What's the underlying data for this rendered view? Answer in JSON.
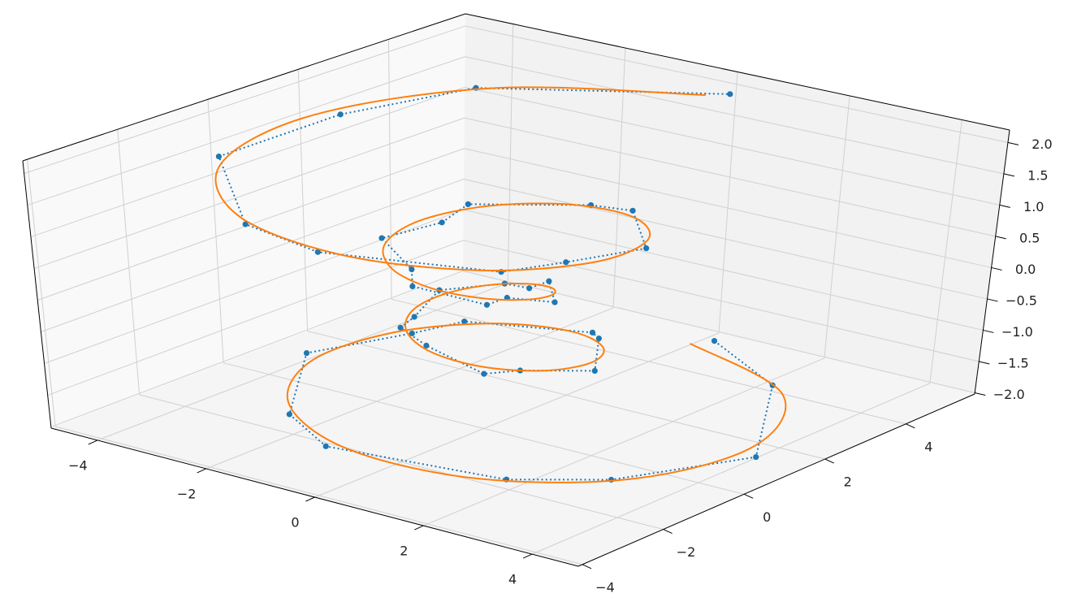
{
  "chart_data": {
    "type": "3d",
    "xlim": [
      -4.85,
      4.85
    ],
    "ylim": [
      -4.1,
      5.7
    ],
    "zlim": [
      -2.02,
      2.2
    ],
    "xticks": [
      {
        "value": -4,
        "label": "−4"
      },
      {
        "value": -2,
        "label": "−2"
      },
      0,
      2,
      4
    ],
    "yticks": [
      {
        "value": -4,
        "label": "−4"
      },
      {
        "value": -2,
        "label": "−2"
      },
      0,
      2,
      4
    ],
    "zticks": [
      {
        "value": -2,
        "label": "−2.0"
      },
      {
        "value": -1.5,
        "label": "−1.5"
      },
      {
        "value": -1,
        "label": "−1.0"
      },
      {
        "value": -0.5,
        "label": "−0.5"
      },
      {
        "value": 0,
        "label": "0.0"
      },
      {
        "value": 0.5,
        "label": "0.5"
      },
      {
        "value": 1,
        "label": "1.0"
      },
      {
        "value": 1.5,
        "label": "1.5"
      },
      {
        "value": 2,
        "label": "2.0"
      }
    ],
    "grid": true,
    "series": [
      {
        "color": "#1f77b4",
        "linestyle": "dotted",
        "marker": "o",
        "x": [
          0.3,
          2.4,
          4.3,
          3.5,
          2.4,
          -0.3,
          -1.5,
          -2.8,
          -2.1,
          -1.6,
          0.3,
          0.8,
          1.8,
          1.2,
          1.0,
          -0.2,
          -0.9,
          -0.8,
          -1.2,
          -0.4,
          0.2,
          0.4,
          1.2,
          0.8,
          0.9,
          -0.2,
          -0.6,
          -1.6,
          -1.3,
          -1.3,
          0.2,
          1.1,
          2.5,
          2.3,
          2.0,
          -0.3,
          -1.8,
          -3.9,
          -3.8,
          -2.9,
          0.2
        ],
        "y": [
          5.2,
          3.9,
          1.0,
          -1.5,
          -2.6,
          -3.4,
          -2.7,
          -0.6,
          1.0,
          1.6,
          2.2,
          1.7,
          0.3,
          -0.7,
          -1.3,
          -1.1,
          -0.8,
          -0.6,
          0.5,
          1.0,
          0.8,
          1.0,
          0.1,
          -0.5,
          -1.1,
          -1.4,
          -0.9,
          -0.3,
          0.7,
          1.3,
          2.2,
          2.0,
          0.5,
          -1.1,
          -2.2,
          -3.4,
          -3.1,
          -1.0,
          1.6,
          3.5,
          5.3
        ],
        "z": [
          -1.95,
          -1.88,
          -1.83,
          -1.68,
          -1.62,
          -1.48,
          -1.42,
          -1.27,
          -1.22,
          -1.08,
          -1.02,
          -0.88,
          -0.82,
          -0.68,
          -0.62,
          -0.48,
          -0.42,
          -0.28,
          -0.22,
          -0.08,
          0.02,
          0.12,
          0.18,
          0.32,
          0.38,
          0.52,
          0.58,
          0.72,
          0.78,
          0.92,
          0.98,
          1.12,
          1.18,
          1.32,
          1.38,
          1.52,
          1.58,
          1.72,
          1.78,
          1.92,
          1.98
        ]
      },
      {
        "color": "#ff7f0e",
        "linestyle": "solid",
        "x": [
          0,
          2.71,
          4.03,
          3.7,
          2.09,
          0,
          -1.74,
          -2.56,
          -2.32,
          -1.3,
          0,
          1.06,
          1.56,
          1.42,
          0.8,
          0,
          -0.68,
          -1.04,
          -0.99,
          -0.59,
          0,
          0.59,
          0.99,
          1.04,
          0.68,
          0,
          -0.8,
          -1.42,
          -1.56,
          -1.06,
          0,
          1.3,
          2.32,
          2.56,
          1.74,
          0,
          -2.09,
          -3.7,
          -4.03,
          -2.71,
          0
        ],
        "y": [
          5,
          3.73,
          1.31,
          -1.2,
          -2.88,
          -3.25,
          -2.39,
          -0.83,
          0.75,
          1.79,
          2,
          1.46,
          0.51,
          -0.46,
          -1.1,
          -1.25,
          -0.94,
          -0.34,
          0.32,
          0.82,
          1,
          0.82,
          0.32,
          -0.34,
          -0.94,
          -1.25,
          -1.1,
          -0.46,
          0.51,
          1.46,
          2,
          1.79,
          0.75,
          -0.83,
          -2.39,
          -3.25,
          -2.88,
          -1.2,
          1.31,
          3.73,
          5
        ],
        "z": [
          -2,
          -1.9,
          -1.8,
          -1.7,
          -1.6,
          -1.5,
          -1.4,
          -1.3,
          -1.2,
          -1.1,
          -1,
          -0.9,
          -0.8,
          -0.7,
          -0.6,
          -0.5,
          -0.4,
          -0.3,
          -0.2,
          -0.1,
          0,
          0.1,
          0.2,
          0.3,
          0.4,
          0.5,
          0.6,
          0.7,
          0.8,
          0.9,
          1,
          1.1,
          1.2,
          1.3,
          1.4,
          1.5,
          1.6,
          1.7,
          1.8,
          1.9,
          2
        ]
      }
    ]
  }
}
